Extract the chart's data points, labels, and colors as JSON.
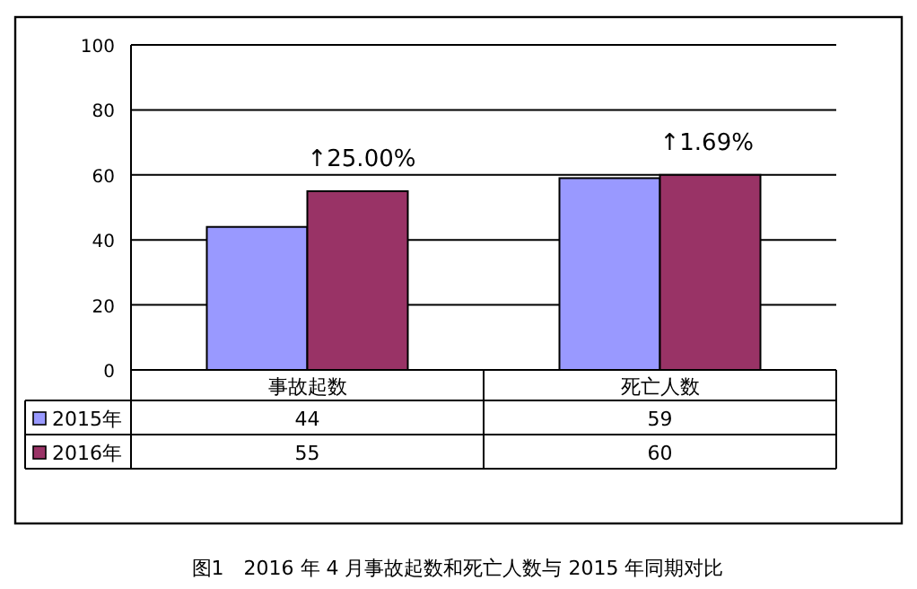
{
  "chart_data": {
    "type": "bar",
    "title": "图1　2016 年 4 月事故起数和死亡人数与 2015 年同期对比",
    "categories": [
      "事故起数",
      "死亡人数"
    ],
    "series": [
      {
        "name": "2015年",
        "color": "#9999ff",
        "values": [
          44,
          59
        ]
      },
      {
        "name": "2016年",
        "color": "#993366",
        "values": [
          55,
          60
        ]
      }
    ],
    "ylim": [
      0,
      100
    ],
    "yticks": [
      0,
      20,
      40,
      60,
      80,
      100
    ],
    "grid": "y",
    "legend": "bottom",
    "data_labels": true,
    "annotations": [
      {
        "text": "↑25.00%",
        "x": "事故起数",
        "y": 55
      },
      {
        "text": "↑1.69%",
        "x": "死亡人数",
        "y": 60
      }
    ]
  }
}
